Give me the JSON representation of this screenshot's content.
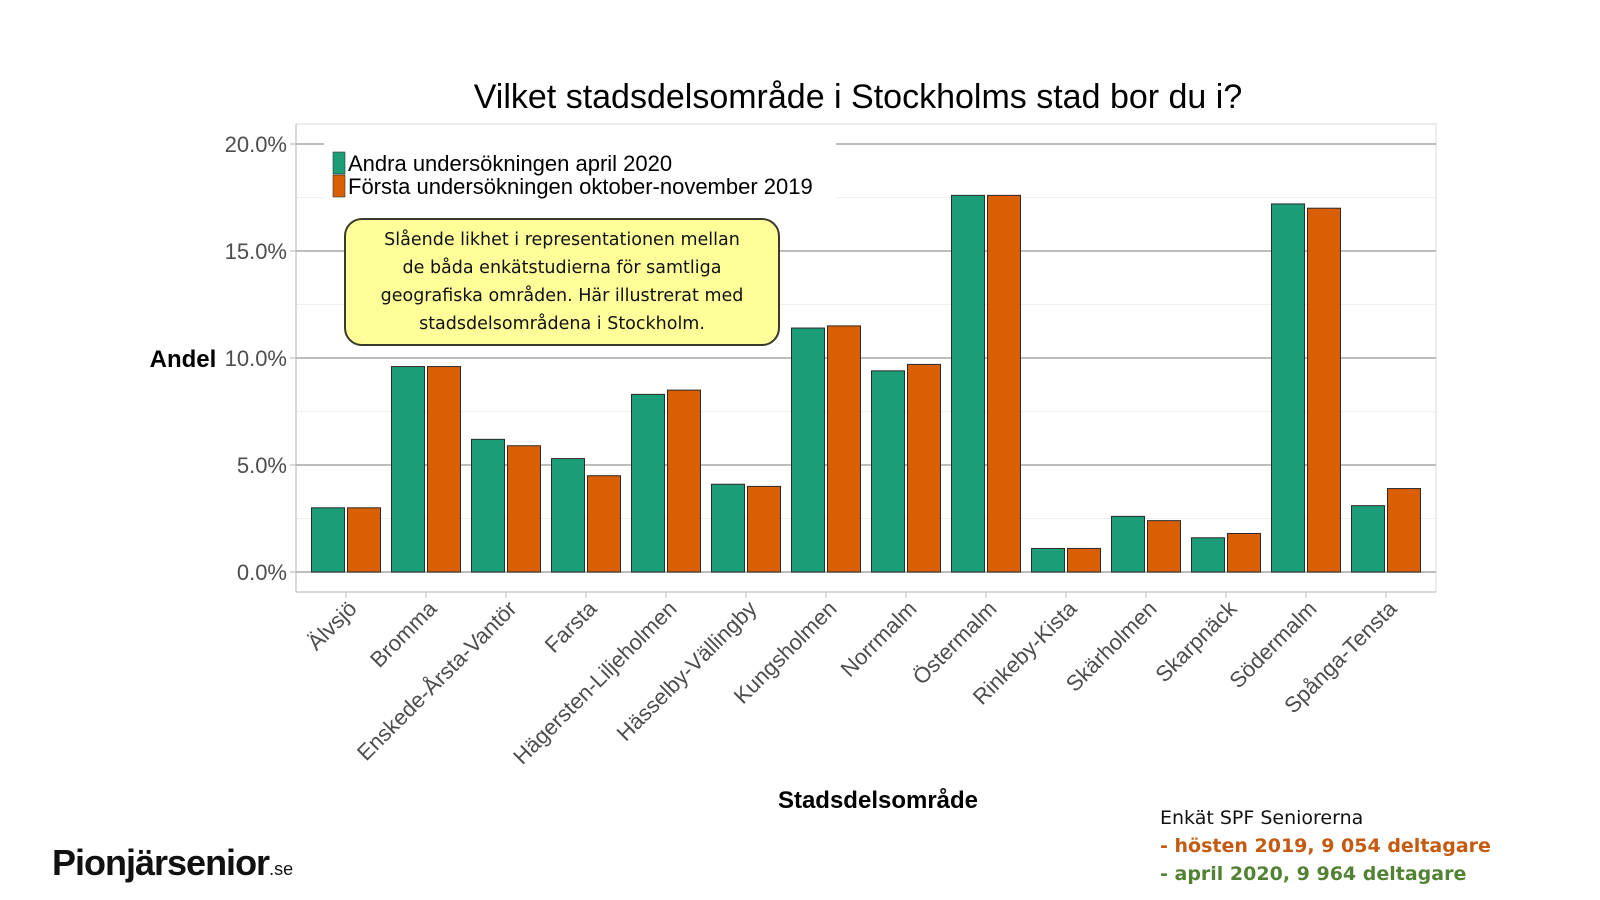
{
  "chart_data": {
    "type": "bar",
    "title": "Vilket stadsdelsområde i Stockholms stad bor du i?",
    "xlabel": "Stadsdelsområde",
    "ylabel": "Andel",
    "ylim": [
      0,
      20
    ],
    "yticks": [
      "0.0%",
      "5.0%",
      "10.0%",
      "15.0%",
      "20.0%"
    ],
    "ytick_values": [
      0,
      5,
      10,
      15,
      20
    ],
    "grid": true,
    "legend_position": "top-left",
    "categories": [
      "Älvsjö",
      "Bromma",
      "Enskede-Årsta-Vantör",
      "Farsta",
      "Hägersten-Liljeholmen",
      "Hässelby-Vällingby",
      "Kungsholmen",
      "Norrmalm",
      "Östermalm",
      "Rinkeby-Kista",
      "Skärholmen",
      "Skarpnäck",
      "Södermalm",
      "Spånga-Tensta"
    ],
    "series": [
      {
        "name": "Andra undersökningen april 2020",
        "color": "#1b9e77",
        "values": [
          3.0,
          9.6,
          6.2,
          5.3,
          8.3,
          4.1,
          11.4,
          9.4,
          17.6,
          1.1,
          2.6,
          1.6,
          17.2,
          3.1
        ]
      },
      {
        "name": "Första undersökningen oktober-november 2019",
        "color": "#d95f02",
        "values": [
          3.0,
          9.6,
          5.9,
          4.5,
          8.5,
          4.0,
          11.5,
          9.7,
          17.6,
          1.1,
          2.4,
          1.8,
          17.0,
          3.9
        ]
      }
    ]
  },
  "callout": {
    "lines": [
      "Slående likhet i representationen mellan",
      "de båda enkätstudierna för samtliga",
      "geografiska områden. Här illustrerat med",
      "stadsdelsområdena i Stockholm."
    ]
  },
  "source": {
    "line1": "Enkät SPF Seniorerna",
    "line2": "- hösten 2019, 9 054 deltagare",
    "line3": "- april 2020, 9 964 deltagare"
  },
  "logo": {
    "main": "Pionjärsenior",
    "tld": ".se"
  },
  "colors": {
    "series_2020": "#1b9e77",
    "series_2019": "#d95f02",
    "callout_bg": "#ffff99",
    "source_2019": "#c55a11",
    "source_2020": "#548235"
  }
}
